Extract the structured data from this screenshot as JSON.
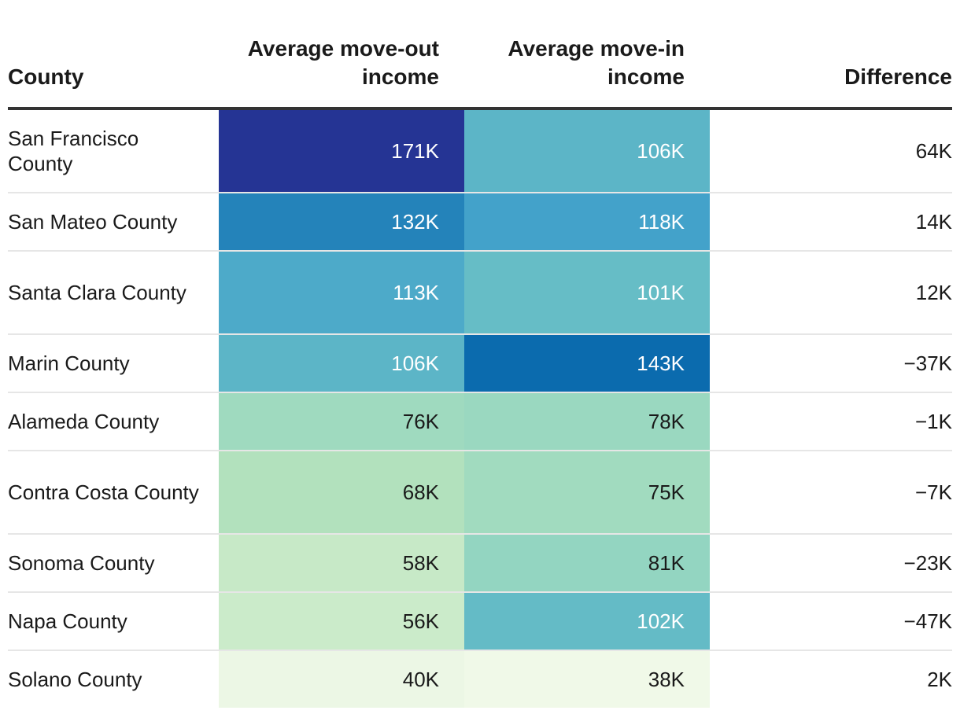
{
  "chart_data": {
    "type": "table",
    "columns": {
      "county": "County",
      "move_out": "Average move-out income",
      "move_in": "Average move-in income",
      "difference": "Difference"
    },
    "rows": [
      {
        "county": "San Francisco County",
        "move_out": 171,
        "move_in": 106,
        "difference": "64K"
      },
      {
        "county": "San Mateo County",
        "move_out": 132,
        "move_in": 118,
        "difference": "14K"
      },
      {
        "county": "Santa Clara County",
        "move_out": 113,
        "move_in": 101,
        "difference": "12K"
      },
      {
        "county": "Marin County",
        "move_out": 106,
        "move_in": 143,
        "difference": "−37K"
      },
      {
        "county": "Alameda County",
        "move_out": 76,
        "move_in": 78,
        "difference": "−1K"
      },
      {
        "county": "Contra Costa County",
        "move_out": 68,
        "move_in": 75,
        "difference": "−7K"
      },
      {
        "county": "Sonoma County",
        "move_out": 58,
        "move_in": 81,
        "difference": "−23K"
      },
      {
        "county": "Napa County",
        "move_out": 56,
        "move_in": 102,
        "difference": "−47K"
      },
      {
        "county": "Solano County",
        "move_out": 40,
        "move_in": 38,
        "difference": "2K"
      }
    ],
    "value_suffix": "K",
    "color_scale": {
      "domain": [
        38,
        171
      ],
      "stops": [
        "#f0f9e8",
        "#bae4bc",
        "#7bccc4",
        "#43a2ca",
        "#0868ac",
        "#253494"
      ]
    }
  }
}
